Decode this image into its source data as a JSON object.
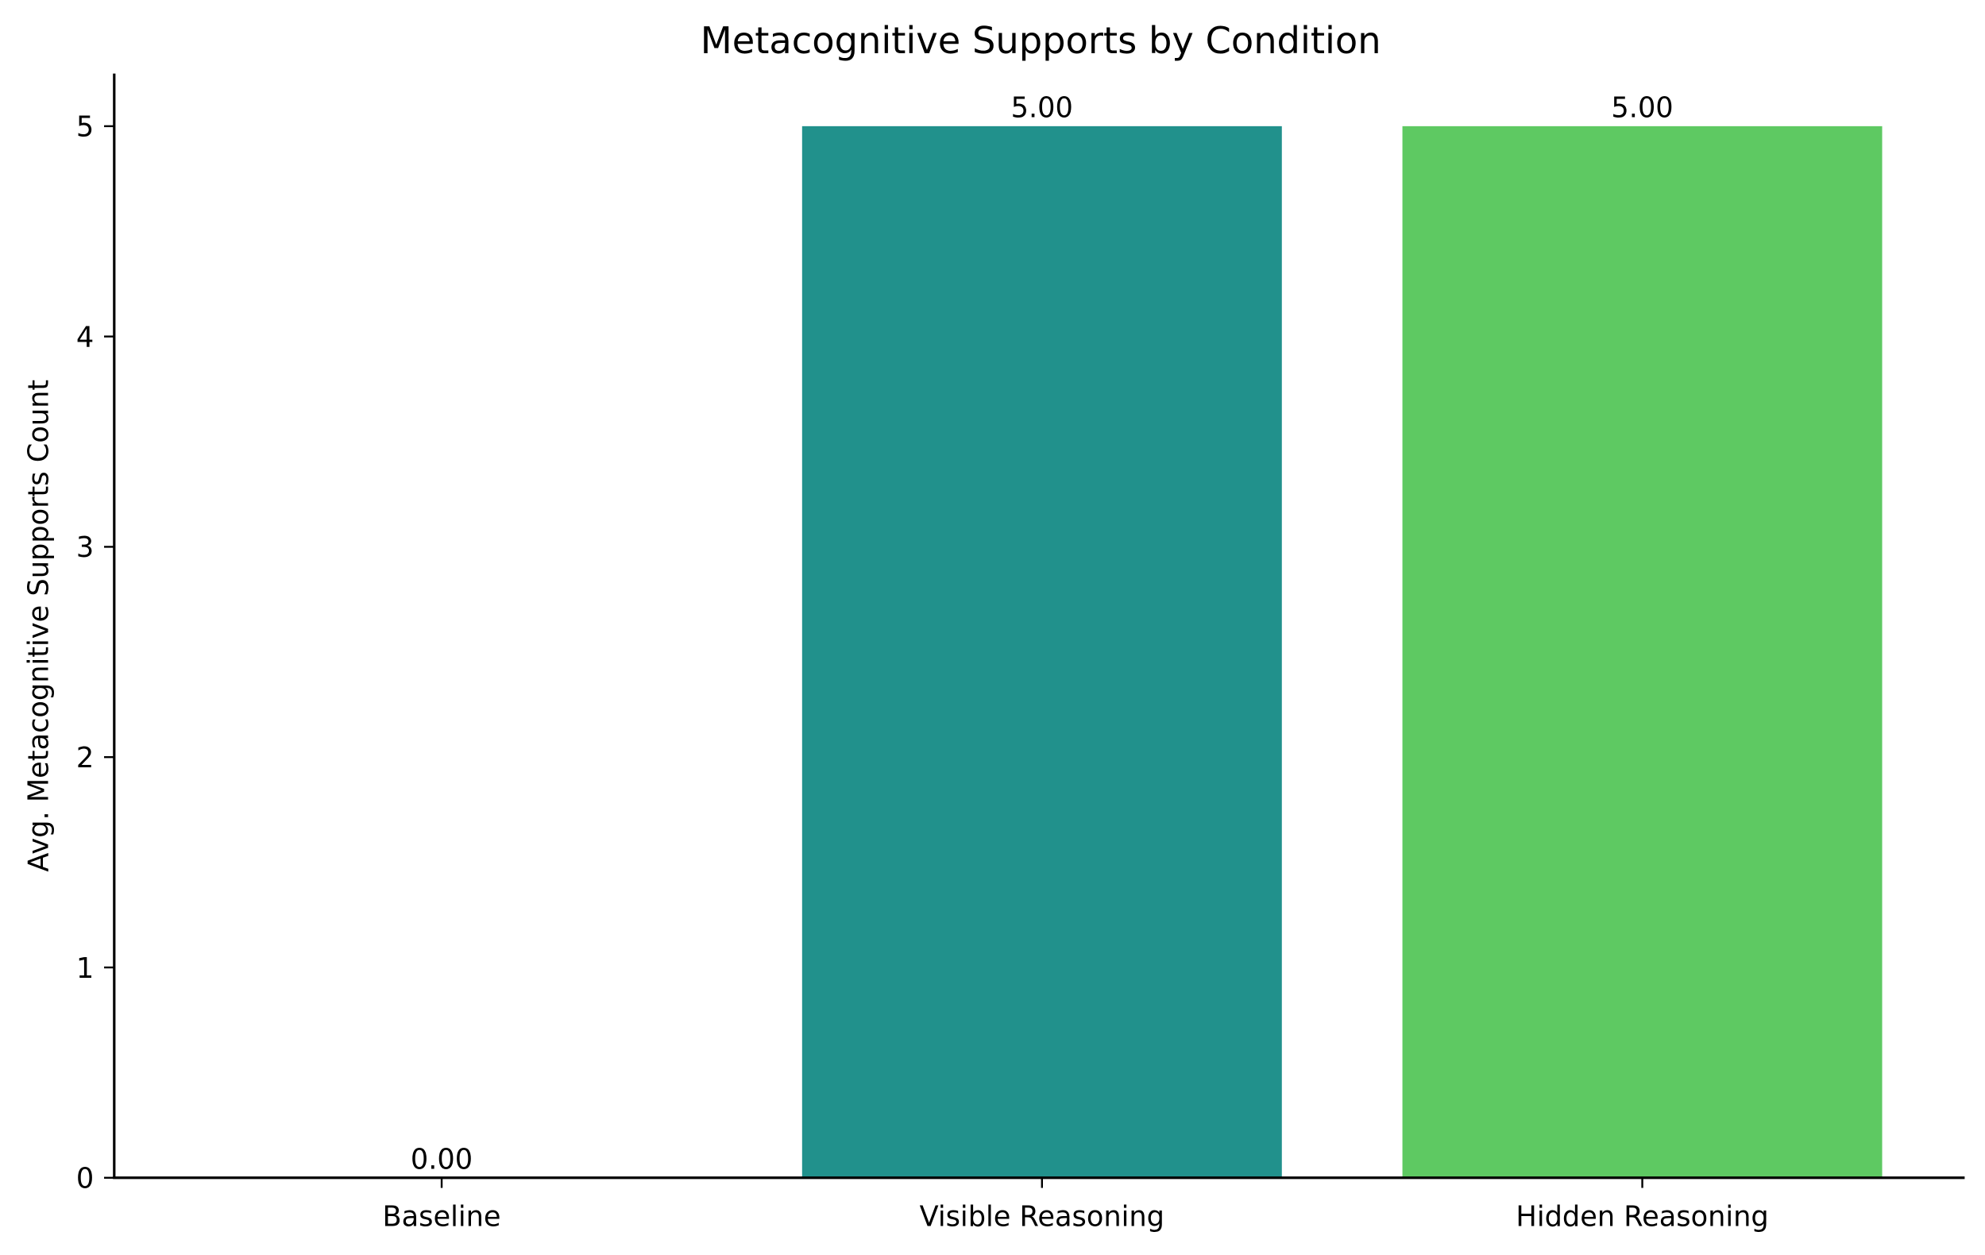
{
  "chart_data": {
    "type": "bar",
    "title": "Metacognitive Supports by Condition",
    "xlabel": "",
    "ylabel": "Avg. Metacognitive Supports Count",
    "categories": [
      "Baseline",
      "Visible Reasoning",
      "Hidden Reasoning"
    ],
    "values": [
      0.0,
      5.0,
      5.0
    ],
    "value_labels": [
      "0.00",
      "5.00",
      "5.00"
    ],
    "colors": [
      "#440154",
      "#21918c",
      "#5ec962"
    ],
    "ylim": [
      0,
      5.25
    ],
    "yticks": [
      0,
      1,
      2,
      3,
      4,
      5
    ],
    "grid": false,
    "legend": false
  }
}
